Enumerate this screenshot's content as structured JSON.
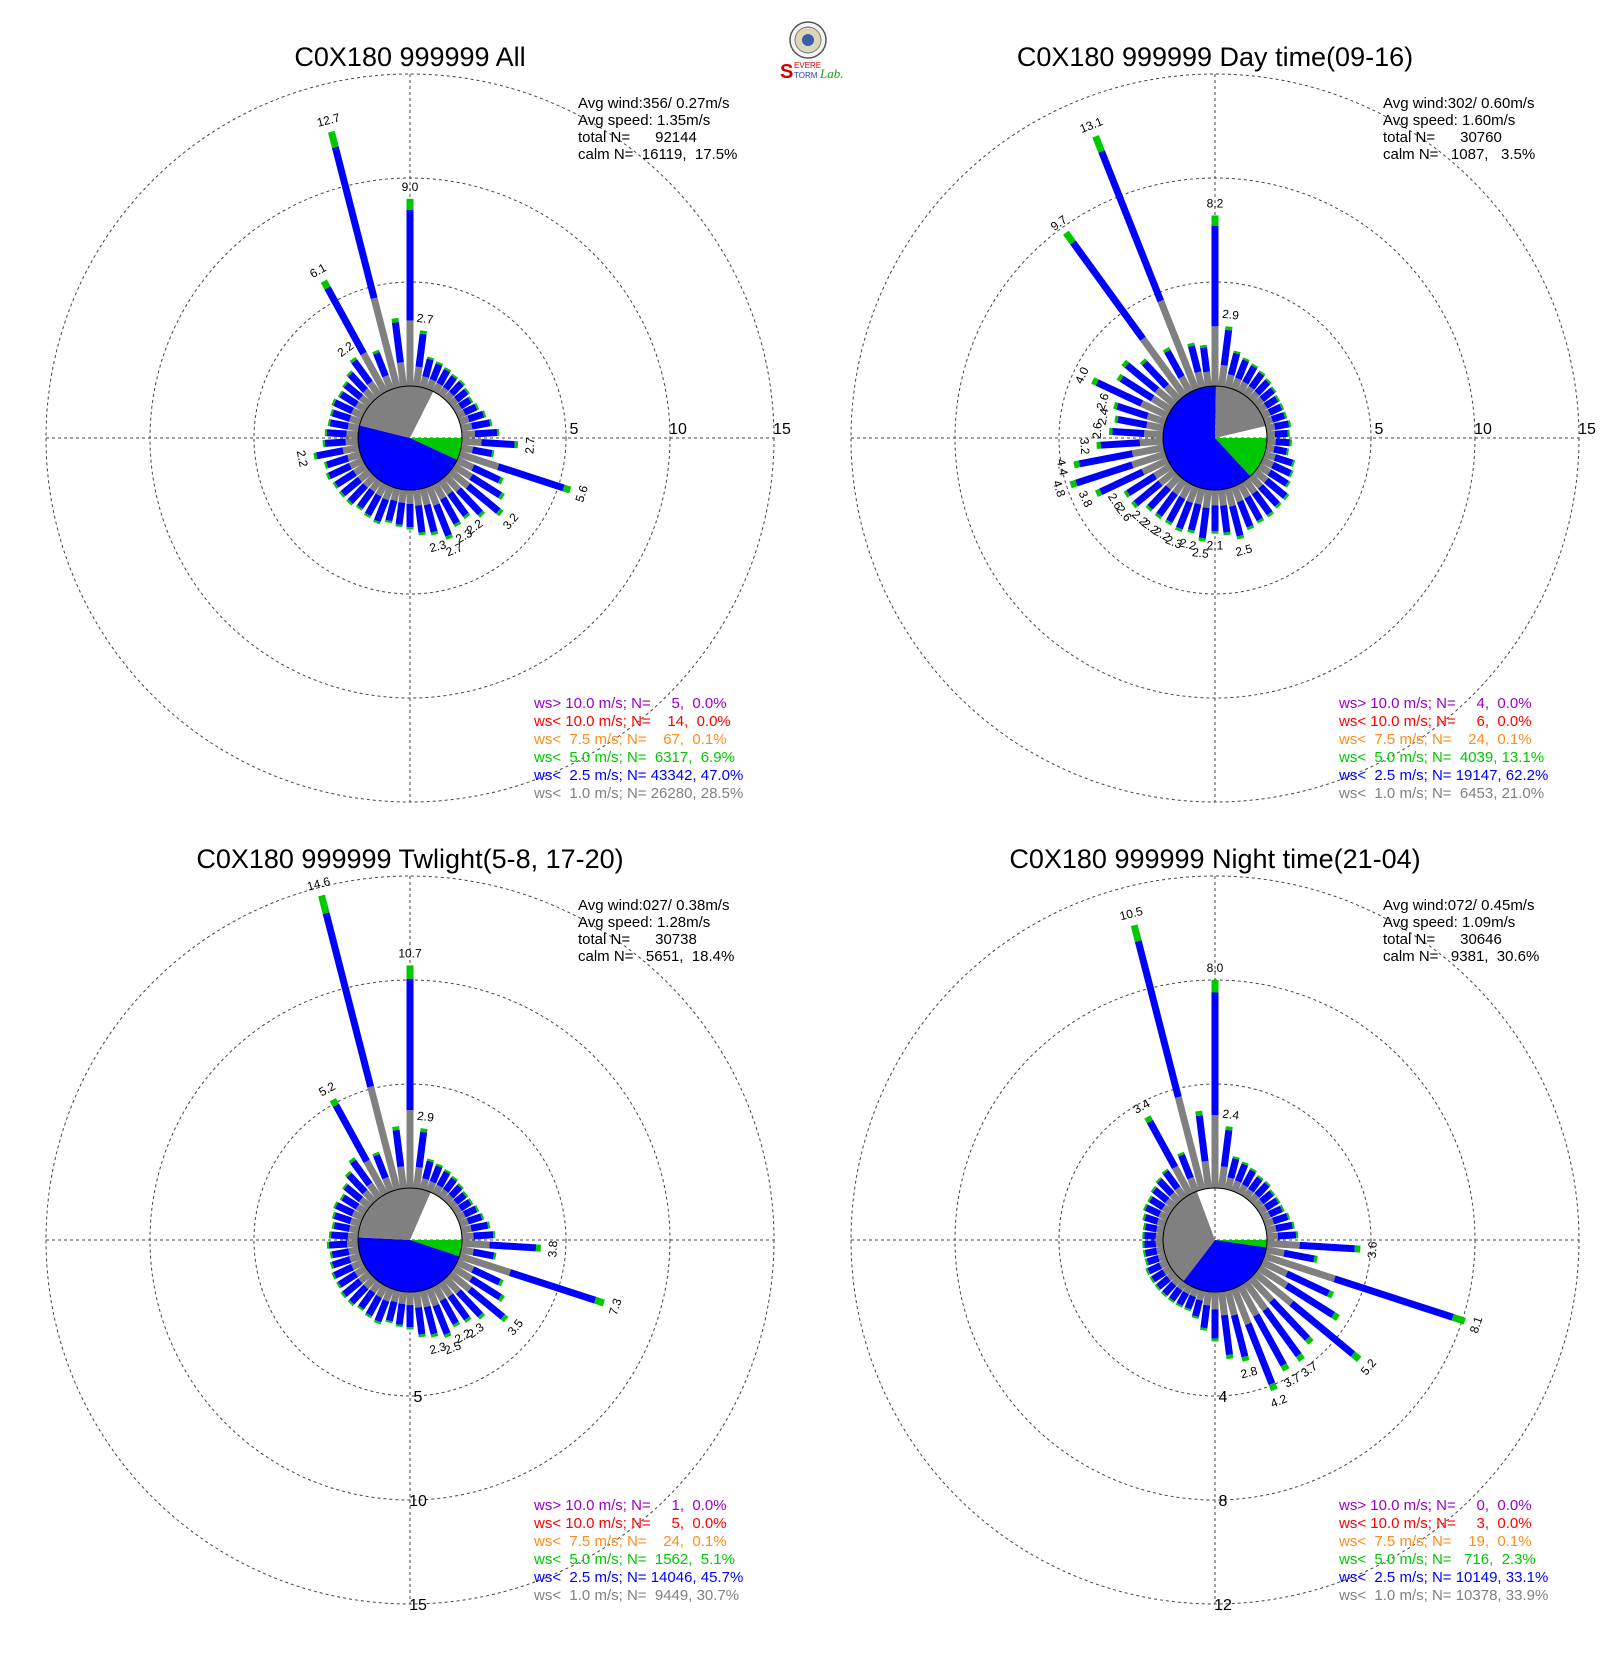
{
  "logo": {
    "lines": [
      "S",
      "EVERE",
      "TORM",
      "Lab."
    ]
  },
  "colors": {
    "calm": "#808080",
    "lt1": "#808080",
    "lt2_5": "#0000ff",
    "lt5": "#00c800",
    "lt7_5": "#ff8c1a",
    "lt10": "#ff0000",
    "gt10": "#9900cc"
  },
  "chart_data": [
    {
      "type": "wind-rose",
      "title": "C0X180 999999 All",
      "stats": [
        "Avg wind:356/ 0.27m/s",
        "Avg speed: 1.35m/s",
        "total N=      92144",
        "calm N=  16119,  17.5%"
      ],
      "ring_labels": [
        "5",
        "10",
        "15"
      ],
      "ring_axis": "east",
      "rmax": 15,
      "pie": {
        "lt1": 28.5,
        "lt2_5": 47.0,
        "lt5": 6.9
      },
      "petals": [
        [
          9,
          "9.0"
        ],
        [
          2.7,
          "2.7"
        ],
        [
          1.5,
          ""
        ],
        [
          1.4,
          ""
        ],
        [
          1.3,
          ""
        ],
        [
          1.2,
          ""
        ],
        [
          1.2,
          ""
        ],
        [
          1.1,
          ""
        ],
        [
          1.0,
          ""
        ],
        [
          1.1,
          ""
        ],
        [
          1.3,
          ""
        ],
        [
          1.5,
          ""
        ],
        [
          1.8,
          ""
        ],
        [
          2.7,
          "2.7"
        ],
        [
          1.6,
          ""
        ],
        [
          5.6,
          "5.6"
        ],
        [
          2.4,
          ""
        ],
        [
          2.8,
          ""
        ],
        [
          3.2,
          "3.2"
        ],
        [
          2.6,
          ""
        ],
        [
          2.2,
          "2.2"
        ],
        [
          2.3,
          "2.3"
        ],
        [
          2.7,
          "2.7"
        ],
        [
          2.3,
          "2.3"
        ],
        [
          2.2,
          ""
        ],
        [
          1.9,
          ""
        ],
        [
          1.8,
          ""
        ],
        [
          1.7,
          ""
        ],
        [
          1.9,
          ""
        ],
        [
          1.8,
          ""
        ],
        [
          1.7,
          ""
        ],
        [
          1.8,
          ""
        ],
        [
          1.8,
          ""
        ],
        [
          1.8,
          ""
        ],
        [
          1.9,
          ""
        ],
        [
          1.8,
          ""
        ],
        [
          2.2,
          "2.2"
        ],
        [
          1.7,
          ""
        ],
        [
          1.6,
          ""
        ],
        [
          1.5,
          ""
        ],
        [
          1.5,
          ""
        ],
        [
          1.6,
          ""
        ],
        [
          1.5,
          ""
        ],
        [
          1.6,
          ""
        ],
        [
          1.8,
          ""
        ],
        [
          2.2,
          "2.2"
        ],
        [
          6.1,
          "6.1"
        ],
        [
          2.0,
          ""
        ],
        [
          12.7,
          "12.7"
        ],
        [
          3.3,
          ""
        ]
      ],
      "legend": [
        {
          "cls": "gt10",
          "text": "ws> 10.0 m/s; N=     5,  0.0%"
        },
        {
          "cls": "lt10",
          "text": "ws< 10.0 m/s; N=    14,  0.0%"
        },
        {
          "cls": "lt7_5",
          "text": "ws<  7.5 m/s; N=    67,  0.1%"
        },
        {
          "cls": "lt5",
          "text": "ws<  5.0 m/s; N=  6317,  6.9%"
        },
        {
          "cls": "lt2_5",
          "text": "ws<  2.5 m/s; N= 43342, 47.0%"
        },
        {
          "cls": "lt1",
          "text": "ws<  1.0 m/s; N= 26280, 28.5%"
        }
      ]
    },
    {
      "type": "wind-rose",
      "title": "C0X180 999999 Day time(09-16)",
      "stats": [
        "Avg wind:302/ 0.60m/s",
        "Avg speed: 1.60m/s",
        "total N=      30760",
        "calm N=   1087,   3.5%"
      ],
      "ring_labels": [
        "5",
        "10",
        "15"
      ],
      "ring_axis": "east",
      "rmax": 15,
      "pie": {
        "lt1": 21.0,
        "lt2_5": 62.2,
        "lt5": 13.1
      },
      "petals": [
        [
          8.2,
          "8.2"
        ],
        [
          2.9,
          "2.9"
        ],
        [
          1.8,
          ""
        ],
        [
          1.6,
          ""
        ],
        [
          1.5,
          ""
        ],
        [
          1.4,
          ""
        ],
        [
          1.3,
          ""
        ],
        [
          1.2,
          ""
        ],
        [
          1.1,
          ""
        ],
        [
          1.1,
          ""
        ],
        [
          1.1,
          ""
        ],
        [
          1.2,
          ""
        ],
        [
          1.1,
          ""
        ],
        [
          1.2,
          ""
        ],
        [
          1.1,
          ""
        ],
        [
          1.5,
          ""
        ],
        [
          1.6,
          ""
        ],
        [
          1.7,
          ""
        ],
        [
          2.0,
          ""
        ],
        [
          2.0,
          ""
        ],
        [
          2.1,
          ""
        ],
        [
          2.1,
          ""
        ],
        [
          2.2,
          ""
        ],
        [
          2.5,
          "2.5"
        ],
        [
          2.2,
          ""
        ],
        [
          2.1,
          "2.1"
        ],
        [
          2.5,
          "2.5"
        ],
        [
          2.2,
          "2.2"
        ],
        [
          2.3,
          "2.3"
        ],
        [
          2.2,
          "2.2"
        ],
        [
          2.2,
          "2.2"
        ],
        [
          2.2,
          "2.2"
        ],
        [
          2.6,
          "2.6"
        ],
        [
          2.6,
          "2.6"
        ],
        [
          3.8,
          "3.8"
        ],
        [
          4.8,
          "4.8"
        ],
        [
          4.4,
          "4.4"
        ],
        [
          3.2,
          "3.2"
        ],
        [
          2.6,
          "2.6"
        ],
        [
          2.4,
          "2.4"
        ],
        [
          2.6,
          "2.6"
        ],
        [
          4.0,
          "4.0"
        ],
        [
          3.0,
          ""
        ],
        [
          3.2,
          ""
        ],
        [
          2.6,
          ""
        ],
        [
          9.7,
          "9.7"
        ],
        [
          2.4,
          ""
        ],
        [
          13.1,
          "13.1"
        ],
        [
          2.2,
          ""
        ],
        [
          2.0,
          ""
        ]
      ],
      "legend": [
        {
          "cls": "gt10",
          "text": "ws> 10.0 m/s; N=     4,  0.0%"
        },
        {
          "cls": "lt10",
          "text": "ws< 10.0 m/s; N=     6,  0.0%"
        },
        {
          "cls": "lt7_5",
          "text": "ws<  7.5 m/s; N=    24,  0.1%"
        },
        {
          "cls": "lt5",
          "text": "ws<  5.0 m/s; N=  4039, 13.1%"
        },
        {
          "cls": "lt2_5",
          "text": "ws<  2.5 m/s; N= 19147, 62.2%"
        },
        {
          "cls": "lt1",
          "text": "ws<  1.0 m/s; N=  6453, 21.0%"
        }
      ]
    },
    {
      "type": "wind-rose",
      "title": "C0X180 999999 Twlight(5-8, 17-20)",
      "stats": [
        "Avg wind:027/ 0.38m/s",
        "Avg speed: 1.28m/s",
        "total N=      30738",
        "calm N=   5651,  18.4%"
      ],
      "ring_labels": [
        "5",
        "10",
        "15"
      ],
      "ring_axis": "south",
      "rmax": 15,
      "pie": {
        "lt1": 30.7,
        "lt2_5": 45.7,
        "lt5": 5.1
      },
      "petals": [
        [
          10.7,
          "10.7"
        ],
        [
          2.9,
          "2.9"
        ],
        [
          1.5,
          ""
        ],
        [
          1.4,
          ""
        ],
        [
          1.3,
          ""
        ],
        [
          1.2,
          ""
        ],
        [
          1.1,
          ""
        ],
        [
          1.0,
          ""
        ],
        [
          1.0,
          ""
        ],
        [
          1.1,
          ""
        ],
        [
          1.2,
          ""
        ],
        [
          1.4,
          ""
        ],
        [
          1.6,
          ""
        ],
        [
          3.8,
          "3.8"
        ],
        [
          1.7,
          ""
        ],
        [
          7.3,
          "7.3"
        ],
        [
          2.4,
          ""
        ],
        [
          2.8,
          ""
        ],
        [
          3.5,
          "3.5"
        ],
        [
          2.6,
          ""
        ],
        [
          2.3,
          "2.3"
        ],
        [
          2.2,
          "2.2"
        ],
        [
          2.5,
          "2.5"
        ],
        [
          2.3,
          "2.3"
        ],
        [
          2.2,
          ""
        ],
        [
          1.8,
          ""
        ],
        [
          1.7,
          ""
        ],
        [
          1.6,
          ""
        ],
        [
          1.8,
          ""
        ],
        [
          1.7,
          ""
        ],
        [
          1.6,
          ""
        ],
        [
          1.7,
          ""
        ],
        [
          1.7,
          ""
        ],
        [
          1.6,
          ""
        ],
        [
          1.6,
          ""
        ],
        [
          1.5,
          ""
        ],
        [
          1.4,
          ""
        ],
        [
          1.5,
          ""
        ],
        [
          1.4,
          ""
        ],
        [
          1.3,
          ""
        ],
        [
          1.4,
          ""
        ],
        [
          1.5,
          ""
        ],
        [
          1.4,
          ""
        ],
        [
          1.6,
          ""
        ],
        [
          1.9,
          ""
        ],
        [
          2.3,
          ""
        ],
        [
          5.2,
          "5.2"
        ],
        [
          2.0,
          ""
        ],
        [
          14.6,
          "14.6"
        ],
        [
          3.0,
          ""
        ]
      ],
      "legend": [
        {
          "cls": "gt10",
          "text": "ws> 10.0 m/s; N=     1,  0.0%"
        },
        {
          "cls": "lt10",
          "text": "ws< 10.0 m/s; N=     5,  0.0%"
        },
        {
          "cls": "lt7_5",
          "text": "ws<  7.5 m/s; N=    24,  0.1%"
        },
        {
          "cls": "lt5",
          "text": "ws<  5.0 m/s; N=  1562,  5.1%"
        },
        {
          "cls": "lt2_5",
          "text": "ws<  2.5 m/s; N= 14046, 45.7%"
        },
        {
          "cls": "lt1",
          "text": "ws<  1.0 m/s; N=  9449, 30.7%"
        }
      ]
    },
    {
      "type": "wind-rose",
      "title": "C0X180 999999 Night time(21-04)",
      "stats": [
        "Avg wind:072/ 0.45m/s",
        "Avg speed: 1.09m/s",
        "total N=      30646",
        "calm N=   9381,  30.6%"
      ],
      "ring_labels": [
        "4",
        "8",
        "12"
      ],
      "ring_axis": "south",
      "rmax": 12,
      "pie": {
        "lt1": 33.9,
        "lt2_5": 33.1,
        "lt5": 2.3
      },
      "petals": [
        [
          8.0,
          "8.0"
        ],
        [
          2.4,
          "2.4"
        ],
        [
          1.3,
          ""
        ],
        [
          1.2,
          ""
        ],
        [
          1.1,
          ""
        ],
        [
          1.0,
          ""
        ],
        [
          1.0,
          ""
        ],
        [
          0.9,
          ""
        ],
        [
          0.9,
          ""
        ],
        [
          0.9,
          ""
        ],
        [
          1.0,
          ""
        ],
        [
          1.1,
          ""
        ],
        [
          1.2,
          ""
        ],
        [
          3.6,
          "3.6"
        ],
        [
          2.0,
          ""
        ],
        [
          8.1,
          "8.1"
        ],
        [
          3.0,
          ""
        ],
        [
          3.6,
          ""
        ],
        [
          5.2,
          "5.2"
        ],
        [
          3.4,
          ""
        ],
        [
          3.7,
          "3.7"
        ],
        [
          3.7,
          "3.7"
        ],
        [
          4.2,
          "4.2"
        ],
        [
          2.8,
          "2.8"
        ],
        [
          2.6,
          ""
        ],
        [
          1.9,
          ""
        ],
        [
          1.5,
          ""
        ],
        [
          1.1,
          ""
        ],
        [
          0.9,
          ""
        ],
        [
          0.9,
          ""
        ],
        [
          0.9,
          ""
        ],
        [
          0.9,
          ""
        ],
        [
          0.9,
          ""
        ],
        [
          0.9,
          ""
        ],
        [
          0.9,
          ""
        ],
        [
          0.8,
          ""
        ],
        [
          0.8,
          ""
        ],
        [
          0.8,
          ""
        ],
        [
          0.8,
          ""
        ],
        [
          0.8,
          ""
        ],
        [
          0.9,
          ""
        ],
        [
          1.0,
          ""
        ],
        [
          1.0,
          ""
        ],
        [
          1.1,
          ""
        ],
        [
          1.2,
          ""
        ],
        [
          1.3,
          ""
        ],
        [
          3.4,
          "3.4"
        ],
        [
          1.6,
          ""
        ],
        [
          10.5,
          "10.5"
        ],
        [
          3.0,
          ""
        ]
      ],
      "legend": [
        {
          "cls": "gt10",
          "text": "ws> 10.0 m/s; N=     0,  0.0%"
        },
        {
          "cls": "lt10",
          "text": "ws< 10.0 m/s; N=     3,  0.0%"
        },
        {
          "cls": "lt7_5",
          "text": "ws<  7.5 m/s; N=    19,  0.1%"
        },
        {
          "cls": "lt5",
          "text": "ws<  5.0 m/s; N=   716,  2.3%"
        },
        {
          "cls": "lt2_5",
          "text": "ws<  2.5 m/s; N= 10149, 33.1%"
        },
        {
          "cls": "lt1",
          "text": "ws<  1.0 m/s; N= 10378, 33.9%"
        }
      ]
    }
  ]
}
